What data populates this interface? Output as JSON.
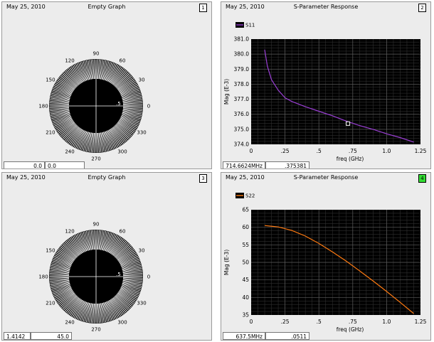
{
  "panels": [
    {
      "date": "May 25, 2010",
      "title": "Empty Graph",
      "number": "1",
      "active": false,
      "kind": "polar",
      "readouts": [
        "0.0",
        "0.0"
      ],
      "angle_labels": [
        "90",
        "60",
        "30",
        "0",
        "330",
        "300",
        "270",
        "240",
        "210",
        "180",
        "150",
        "120"
      ],
      "radius_label": ".5"
    },
    {
      "date": "May 25, 2010",
      "title": "S-Parameter Response",
      "number": "2",
      "active": false,
      "kind": "plot",
      "readouts": [
        "714.6624MHz",
        ".375381"
      ]
    },
    {
      "date": "May 25, 2010",
      "title": "Empty Graph",
      "number": "3",
      "active": false,
      "kind": "polar",
      "readouts": [
        "1.4142",
        "45.0"
      ],
      "angle_labels": [
        "90",
        "60",
        "30",
        "0",
        "330",
        "300",
        "270",
        "240",
        "210",
        "180",
        "150",
        "120"
      ],
      "radius_label": ".5"
    },
    {
      "date": "May 25, 2010",
      "title": "S-Parameter Response",
      "number": "4",
      "active": true,
      "kind": "plot",
      "readouts": [
        "637.5MHz",
        ".0511"
      ]
    }
  ],
  "chart_data": [
    {
      "type": "line",
      "title": "",
      "xlabel": "freq (GHz)",
      "ylabel": "Mag (E-3)",
      "xlim": [
        0,
        1.25
      ],
      "ylim": [
        374.0,
        381.0
      ],
      "xticks": [
        "0",
        ".25",
        ".5",
        ".75",
        "1.0",
        "1.25"
      ],
      "yticks": [
        "374.0",
        "375.0",
        "376.0",
        "377.0",
        "378.0",
        "379.0",
        "380.0",
        "381.0"
      ],
      "grid": true,
      "legend": "top-left",
      "series": [
        {
          "name": "S11",
          "color": "#9b3fd6",
          "x": [
            0.1,
            0.12,
            0.15,
            0.2,
            0.25,
            0.3,
            0.4,
            0.5,
            0.6,
            0.7,
            0.8,
            0.9,
            1.0,
            1.1,
            1.2
          ],
          "y": [
            380.3,
            379.2,
            378.3,
            377.6,
            377.1,
            376.85,
            376.5,
            376.2,
            375.9,
            375.55,
            375.25,
            375.0,
            374.7,
            374.45,
            374.15
          ]
        }
      ],
      "marker": {
        "x": 0.7146624,
        "y": 375.381
      }
    },
    {
      "type": "line",
      "title": "",
      "xlabel": "freq (GHz)",
      "ylabel": "Mag (E-3)",
      "xlim": [
        0,
        1.25
      ],
      "ylim": [
        35,
        65
      ],
      "xticks": [
        "0",
        ".25",
        ".5",
        ".75",
        "1.0",
        "1.25"
      ],
      "yticks": [
        "35",
        "40",
        "45",
        "50",
        "55",
        "60",
        "65"
      ],
      "grid": true,
      "legend": "top-left",
      "series": [
        {
          "name": "S22",
          "color": "#ff7a10",
          "x": [
            0.1,
            0.2,
            0.3,
            0.4,
            0.5,
            0.6,
            0.7,
            0.8,
            0.9,
            1.0,
            1.1,
            1.2
          ],
          "y": [
            60.5,
            60.1,
            59.1,
            57.5,
            55.4,
            53.0,
            50.4,
            47.6,
            44.7,
            41.7,
            38.6,
            35.4
          ]
        }
      ]
    }
  ]
}
